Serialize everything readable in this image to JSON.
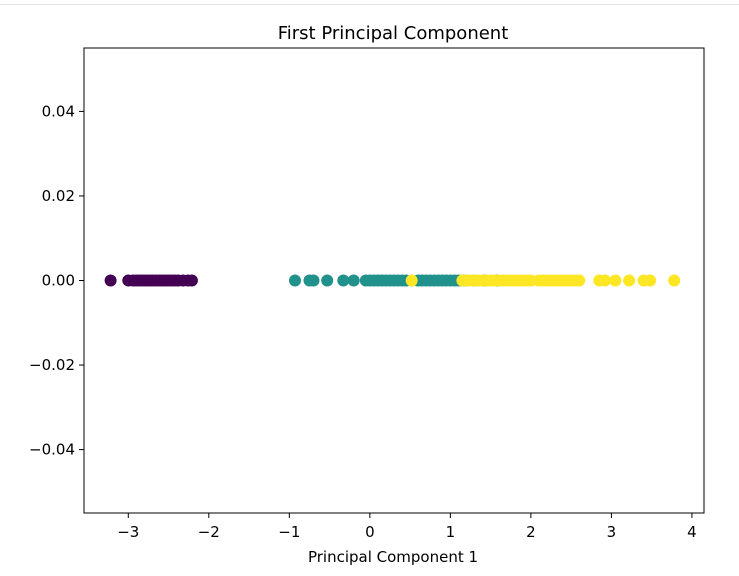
{
  "chart_data": {
    "type": "scatter",
    "title": "First Principal Component",
    "xlabel": "Principal Component 1",
    "ylabel": "",
    "xlim": [
      -3.55,
      4.15
    ],
    "ylim": [
      -0.055,
      0.055
    ],
    "xticks": [
      -3,
      -2,
      -1,
      0,
      1,
      2,
      3,
      4
    ],
    "xtick_labels": [
      "−3",
      "−2",
      "−1",
      "0",
      "1",
      "2",
      "3",
      "4"
    ],
    "yticks": [
      0.04,
      0.02,
      0.0,
      -0.02,
      -0.04
    ],
    "ytick_labels": [
      "0.04",
      "0.02",
      "0.00",
      "−0.02",
      "−0.04"
    ],
    "grid": false,
    "legend": "none",
    "series": [
      {
        "color": "#440154",
        "x": [
          -3.22,
          -3.0,
          -2.94,
          -2.9,
          -2.86,
          -2.82,
          -2.78,
          -2.74,
          -2.7,
          -2.66,
          -2.62,
          -2.58,
          -2.54,
          -2.5,
          -2.46,
          -2.42,
          -2.38,
          -2.32,
          -2.26,
          -2.21
        ],
        "y": [
          0,
          0,
          0,
          0,
          0,
          0,
          0,
          0,
          0,
          0,
          0,
          0,
          0,
          0,
          0,
          0,
          0,
          0,
          0,
          0
        ]
      },
      {
        "color": "#21918c",
        "x": [
          -0.93,
          -0.75,
          -0.7,
          -0.53,
          -0.33,
          -0.2,
          -0.05,
          0.0,
          0.05,
          0.1,
          0.15,
          0.2,
          0.25,
          0.3,
          0.35,
          0.4,
          0.45,
          0.6,
          0.65,
          0.7,
          0.75,
          0.8,
          0.85,
          0.9,
          0.95,
          1.0,
          1.05,
          1.1,
          1.15,
          1.2,
          1.3,
          1.42,
          1.58
        ],
        "y": [
          0,
          0,
          0,
          0,
          0,
          0,
          0,
          0,
          0,
          0,
          0,
          0,
          0,
          0,
          0,
          0,
          0,
          0,
          0,
          0,
          0,
          0,
          0,
          0,
          0,
          0,
          0,
          0,
          0,
          0,
          0,
          0,
          0
        ]
      },
      {
        "color": "#fde725",
        "x": [
          0.52,
          1.15,
          1.2,
          1.25,
          1.3,
          1.35,
          1.4,
          1.45,
          1.5,
          1.55,
          1.6,
          1.65,
          1.7,
          1.75,
          1.8,
          1.85,
          1.9,
          1.95,
          2.0,
          2.1,
          2.15,
          2.2,
          2.25,
          2.3,
          2.35,
          2.4,
          2.45,
          2.5,
          2.55,
          2.6,
          2.85,
          2.92,
          3.05,
          3.22,
          3.4,
          3.48,
          3.78
        ],
        "y": [
          0,
          0,
          0,
          0,
          0,
          0,
          0,
          0,
          0,
          0,
          0,
          0,
          0,
          0,
          0,
          0,
          0,
          0,
          0,
          0,
          0,
          0,
          0,
          0,
          0,
          0,
          0,
          0,
          0,
          0,
          0,
          0,
          0,
          0,
          0,
          0,
          0
        ]
      }
    ]
  }
}
